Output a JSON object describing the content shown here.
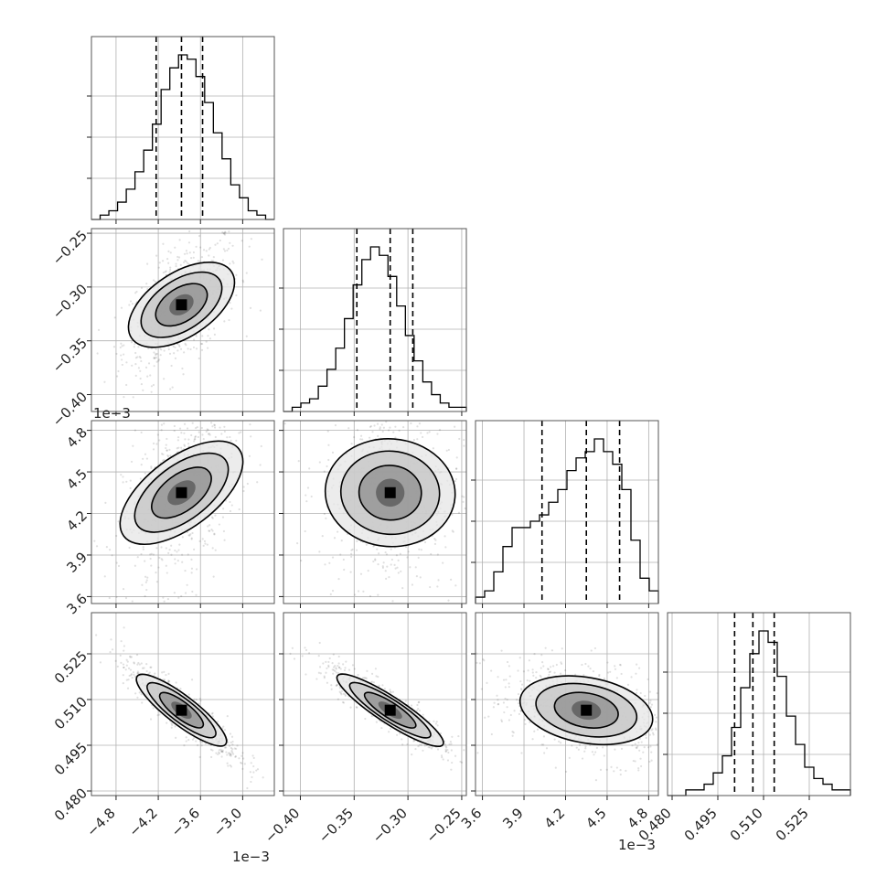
{
  "chart_data": {
    "type": "corner",
    "grid": true,
    "parameters": [
      {
        "index": 0,
        "range": [
          -5.15,
          -2.55
        ],
        "ticks": [
          -4.8,
          -4.2,
          -3.6,
          -3.0
        ],
        "tick_labels": [
          "−4.8",
          "−4.2",
          "−3.6",
          "−3.0"
        ],
        "offset_label": "1e−3"
      },
      {
        "index": 1,
        "range": [
          -0.4157,
          -0.2457
        ],
        "ticks": [
          -0.4,
          -0.35,
          -0.3,
          -0.25
        ],
        "tick_labels": [
          "−0.40",
          "−0.35",
          "−0.30",
          "−0.25"
        ],
        "offset_label": ""
      },
      {
        "index": 2,
        "range": [
          3.55,
          4.87
        ],
        "ticks": [
          3.6,
          3.9,
          4.2,
          4.5,
          4.8
        ],
        "tick_labels": [
          "3.6",
          "3.9",
          "4.2",
          "4.5",
          "4.8"
        ],
        "offset_label": "1e−3"
      },
      {
        "index": 3,
        "range": [
          0.4785,
          0.5385
        ],
        "ticks": [
          0.48,
          0.495,
          0.51,
          0.525
        ],
        "tick_labels": [
          "0.480",
          "0.495",
          "0.510",
          "0.525"
        ],
        "offset_label": ""
      }
    ],
    "quantiles": [
      [
        -4.23,
        -3.87,
        -3.57
      ],
      [
        -0.3475,
        -0.3165,
        -0.2955
      ],
      [
        4.03,
        4.35,
        4.59
      ],
      [
        0.5005,
        0.5065,
        0.5135
      ]
    ],
    "histograms": [
      {
        "edges": [
          -5.15,
          -2.55
        ],
        "counts": [
          0,
          1,
          2,
          4,
          7,
          11,
          16,
          22,
          30,
          35,
          38,
          37,
          33,
          27,
          20,
          14,
          8,
          5,
          2,
          1,
          0
        ]
      },
      {
        "edges": [
          -0.4157,
          -0.2457
        ],
        "counts": [
          0,
          1,
          2,
          3,
          6,
          10,
          15,
          22,
          30,
          36,
          39,
          37,
          32,
          25,
          18,
          12,
          7,
          4,
          2,
          1,
          1
        ]
      },
      {
        "edges": [
          3.55,
          4.87
        ],
        "counts": [
          1,
          2,
          5,
          9,
          12,
          12,
          13,
          14,
          16,
          18,
          21,
          23,
          24,
          26,
          24,
          22,
          18,
          10,
          4,
          2
        ]
      },
      {
        "edges": [
          0.4785,
          0.5385
        ],
        "counts": [
          0,
          0,
          1,
          1,
          2,
          4,
          7,
          12,
          19,
          25,
          29,
          27,
          21,
          14,
          9,
          5,
          3,
          2,
          1,
          1
        ]
      }
    ],
    "pairs": [
      {
        "x": 0,
        "y": 1,
        "corr": 0.55
      },
      {
        "x": 0,
        "y": 2,
        "corr": 0.45
      },
      {
        "x": 1,
        "y": 2,
        "corr": -0.05
      },
      {
        "x": 0,
        "y": 3,
        "corr": -0.9
      },
      {
        "x": 1,
        "y": 3,
        "corr": -0.92
      },
      {
        "x": 2,
        "y": 3,
        "corr": -0.35
      }
    ]
  }
}
